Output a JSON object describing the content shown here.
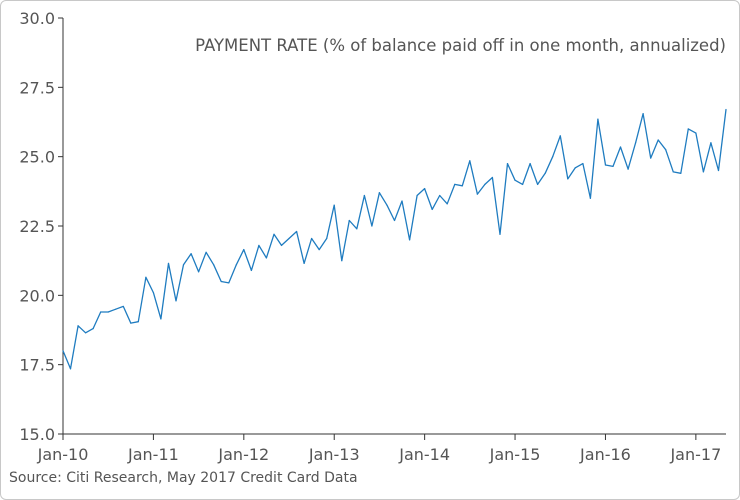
{
  "chart_data": {
    "type": "line",
    "title": "PAYMENT RATE (% of balance paid off in one month, annualized)",
    "xlabel": "",
    "ylabel": "",
    "source": "Source: Citi Research, May 2017 Credit Card Data",
    "x_tick_labels": [
      "Jan-10",
      "Jan-11",
      "Jan-12",
      "Jan-13",
      "Jan-14",
      "Jan-15",
      "Jan-16",
      "Jan-17"
    ],
    "y_tick_labels": [
      "15.0",
      "17.5",
      "20.0",
      "22.5",
      "25.0",
      "27.5",
      "30.0"
    ],
    "ylim": [
      15,
      30
    ],
    "xlim": [
      "2010-01",
      "2017-05"
    ],
    "grid": false,
    "colors": {
      "series": "#1f7cc0",
      "axis": "#333333",
      "text": "#555555"
    },
    "series": [
      {
        "x": [
          "2010-01",
          "2010-02",
          "2010-03",
          "2010-04",
          "2010-05",
          "2010-06",
          "2010-07",
          "2010-08",
          "2010-09",
          "2010-10",
          "2010-11",
          "2010-12",
          "2011-01",
          "2011-02",
          "2011-03",
          "2011-04",
          "2011-05",
          "2011-06",
          "2011-07",
          "2011-08",
          "2011-09",
          "2011-10",
          "2011-11",
          "2011-12",
          "2012-01",
          "2012-02",
          "2012-03",
          "2012-04",
          "2012-05",
          "2012-06",
          "2012-07",
          "2012-08",
          "2012-09",
          "2012-10",
          "2012-11",
          "2012-12",
          "2013-01",
          "2013-02",
          "2013-03",
          "2013-04",
          "2013-05",
          "2013-06",
          "2013-07",
          "2013-08",
          "2013-09",
          "2013-10",
          "2013-11",
          "2013-12",
          "2014-01",
          "2014-02",
          "2014-03",
          "2014-04",
          "2014-05",
          "2014-06",
          "2014-07",
          "2014-08",
          "2014-09",
          "2014-10",
          "2014-11",
          "2014-12",
          "2015-01",
          "2015-02",
          "2015-03",
          "2015-04",
          "2015-05",
          "2015-06",
          "2015-07",
          "2015-08",
          "2015-09",
          "2015-10",
          "2015-11",
          "2015-12",
          "2016-01",
          "2016-02",
          "2016-03",
          "2016-04",
          "2016-05",
          "2016-06",
          "2016-07",
          "2016-08",
          "2016-09",
          "2016-10",
          "2016-11",
          "2016-12",
          "2017-01",
          "2017-02",
          "2017-03",
          "2017-04",
          "2017-05"
        ],
        "values": [
          18.0,
          17.35,
          18.9,
          18.65,
          18.8,
          19.4,
          19.4,
          19.5,
          19.6,
          19.0,
          19.05,
          20.65,
          20.1,
          19.15,
          21.15,
          19.8,
          21.1,
          21.5,
          20.85,
          21.55,
          21.1,
          20.5,
          20.45,
          21.1,
          21.65,
          20.9,
          21.8,
          21.35,
          22.2,
          21.8,
          22.05,
          22.3,
          21.15,
          22.05,
          21.65,
          22.05,
          23.25,
          21.25,
          22.7,
          22.4,
          23.6,
          22.5,
          23.7,
          23.25,
          22.7,
          23.4,
          22.0,
          23.6,
          23.85,
          23.1,
          23.6,
          23.3,
          24.0,
          23.95,
          24.85,
          23.65,
          24.0,
          24.25,
          22.2,
          24.75,
          24.15,
          24.0,
          24.75,
          24.0,
          24.4,
          25.0,
          25.75,
          24.2,
          24.6,
          24.75,
          23.5,
          26.35,
          24.7,
          24.65,
          25.35,
          24.55,
          25.5,
          26.55,
          24.95,
          25.6,
          25.25,
          24.45,
          24.4,
          26.0,
          25.85,
          24.45,
          25.5,
          24.5,
          26.7
        ]
      }
    ]
  }
}
